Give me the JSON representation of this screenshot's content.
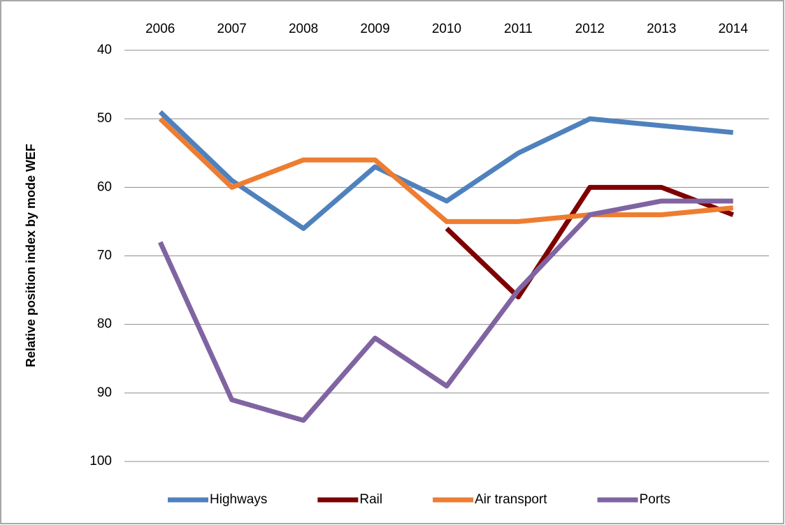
{
  "chart_data": {
    "type": "line",
    "y_label": "Relative position index  by mode  WEF",
    "categories": [
      "2006",
      "2007",
      "2008",
      "2009",
      "2010",
      "2011",
      "2012",
      "2013",
      "2014"
    ],
    "series": [
      {
        "name": "Highways",
        "color": "#4f81bd",
        "values": [
          49,
          59,
          66,
          57,
          62,
          55,
          50,
          51,
          52
        ]
      },
      {
        "name": "Rail",
        "color": "#7f0000",
        "values": [
          null,
          null,
          null,
          null,
          66,
          76,
          60,
          60,
          64
        ]
      },
      {
        "name": "Air transport",
        "color": "#ed7d31",
        "values": [
          50,
          60,
          56,
          56,
          65,
          65,
          64,
          64,
          63
        ]
      },
      {
        "name": "Ports",
        "color": "#8064a2",
        "values": [
          68,
          91,
          94,
          82,
          89,
          75,
          64,
          62,
          62
        ]
      }
    ],
    "ylim": [
      40,
      100
    ],
    "yticks": [
      40,
      50,
      60,
      70,
      80,
      90,
      100
    ],
    "y_reversed": true,
    "x_axis_position": "top",
    "grid": true,
    "legend": "bottom"
  }
}
